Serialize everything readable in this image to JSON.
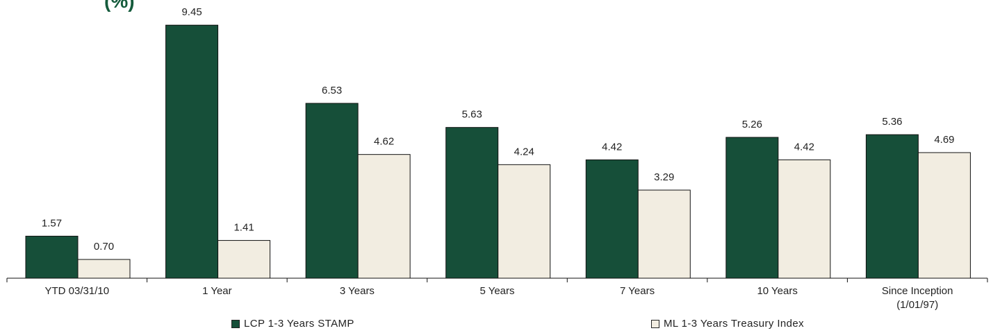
{
  "chart_data": {
    "type": "bar",
    "title": "(%)",
    "categories": [
      "YTD 03/31/10",
      "1 Year",
      "3 Years",
      "5 Years",
      "7 Years",
      "10 Years",
      "Since Inception (1/01/97)"
    ],
    "category_lines": [
      [
        "YTD 03/31/10"
      ],
      [
        "1 Year"
      ],
      [
        "3 Years"
      ],
      [
        "5 Years"
      ],
      [
        "7 Years"
      ],
      [
        "10 Years"
      ],
      [
        "Since Inception",
        "(1/01/97)"
      ]
    ],
    "series": [
      {
        "name": "LCP 1-3 Years STAMP",
        "values": [
          1.57,
          9.45,
          6.53,
          5.63,
          4.42,
          5.26,
          5.36
        ],
        "labels": [
          "1.57",
          "9.45",
          "6.53",
          "5.63",
          "4.42",
          "5.26",
          "5.36"
        ],
        "color": "#164f39"
      },
      {
        "name": "ML 1-3 Years Treasury Index",
        "values": [
          0.7,
          1.41,
          4.62,
          4.24,
          3.29,
          4.42,
          4.69
        ],
        "labels": [
          "0.70",
          "1.41",
          "4.62",
          "4.24",
          "3.29",
          "4.42",
          "4.69"
        ],
        "color": "#f2ede1"
      }
    ],
    "ylim": [
      0,
      10
    ],
    "grid": false,
    "legend_position": "bottom"
  }
}
